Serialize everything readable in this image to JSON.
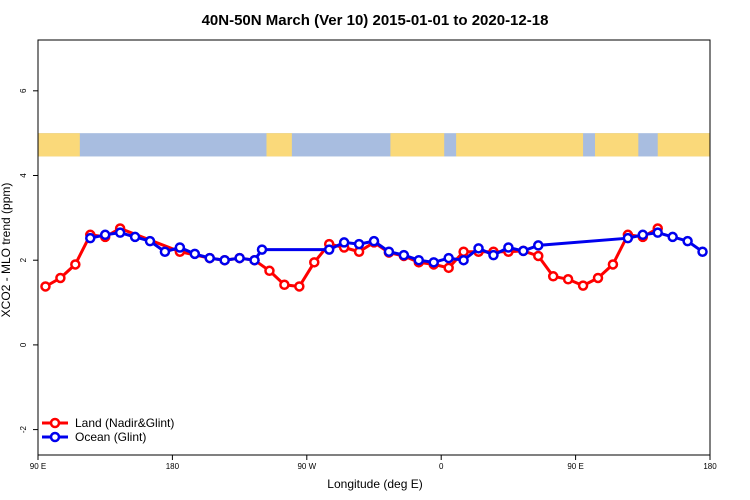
{
  "chart_data": {
    "type": "line",
    "title": "40N-50N March (Ver 10)   2015-01-01 to 2020-12-18",
    "xlabel": "Longitude (deg E)",
    "ylabel": "XCO2 - MLO trend (ppm)",
    "xlim": [
      90,
      540
    ],
    "ylim": [
      -2.6,
      7.2
    ],
    "x_ticks": [
      {
        "value": 90,
        "label": "90 E"
      },
      {
        "value": 180,
        "label": "180"
      },
      {
        "value": 270,
        "label": "90 W"
      },
      {
        "value": 360,
        "label": "0"
      },
      {
        "value": 450,
        "label": "90 E"
      },
      {
        "value": 540,
        "label": "180"
      }
    ],
    "y_ticks": [
      {
        "value": -2,
        "label": "-2"
      },
      {
        "value": 0,
        "label": "0"
      },
      {
        "value": 2,
        "label": "2"
      },
      {
        "value": 4,
        "label": "4"
      },
      {
        "value": 6,
        "label": "6"
      }
    ],
    "map_band": {
      "ymin": 4.45,
      "ymax": 5.0,
      "ocean_color": "#a8bde0",
      "land_color": "#fad97a"
    },
    "legend_position": "bottom-left",
    "series": [
      {
        "name": "Land (Nadir&Glint)",
        "color": "#ff0000",
        "x": [
          95,
          105,
          115,
          125,
          135,
          145,
          185,
          205,
          215,
          225,
          235,
          245,
          255,
          265,
          275,
          285,
          295,
          305,
          315,
          325,
          335,
          345,
          355,
          365,
          375,
          385,
          395,
          405,
          415,
          425,
          435,
          445,
          455,
          465,
          475,
          485,
          495,
          505
        ],
        "y": [
          1.38,
          1.58,
          1.9,
          2.6,
          2.55,
          2.75,
          2.2,
          2.05,
          2.0,
          2.05,
          2.0,
          1.75,
          1.42,
          1.38,
          1.95,
          2.38,
          2.3,
          2.2,
          2.42,
          2.18,
          2.1,
          1.95,
          1.9,
          1.82,
          2.2,
          2.2,
          2.2,
          2.2,
          2.22,
          2.1,
          1.62,
          1.55,
          1.4,
          1.58,
          1.9,
          2.6,
          2.55,
          2.75
        ]
      },
      {
        "name": "Ocean (Glint)",
        "color": "#0000ee",
        "x": [
          125,
          135,
          145,
          155,
          165,
          175,
          185,
          195,
          205,
          215,
          225,
          235,
          240,
          285,
          295,
          305,
          315,
          325,
          335,
          345,
          355,
          365,
          375,
          385,
          395,
          405,
          415,
          425,
          485,
          495,
          505,
          515,
          525,
          535
        ],
        "y": [
          2.52,
          2.6,
          2.65,
          2.55,
          2.45,
          2.2,
          2.3,
          2.15,
          2.05,
          2.0,
          2.05,
          2.0,
          2.25,
          2.25,
          2.42,
          2.38,
          2.45,
          2.2,
          2.12,
          2.0,
          1.95,
          2.05,
          2.0,
          2.28,
          2.12,
          2.3,
          2.22,
          2.35,
          2.52,
          2.6,
          2.65,
          2.55,
          2.45,
          2.2
        ]
      }
    ]
  }
}
